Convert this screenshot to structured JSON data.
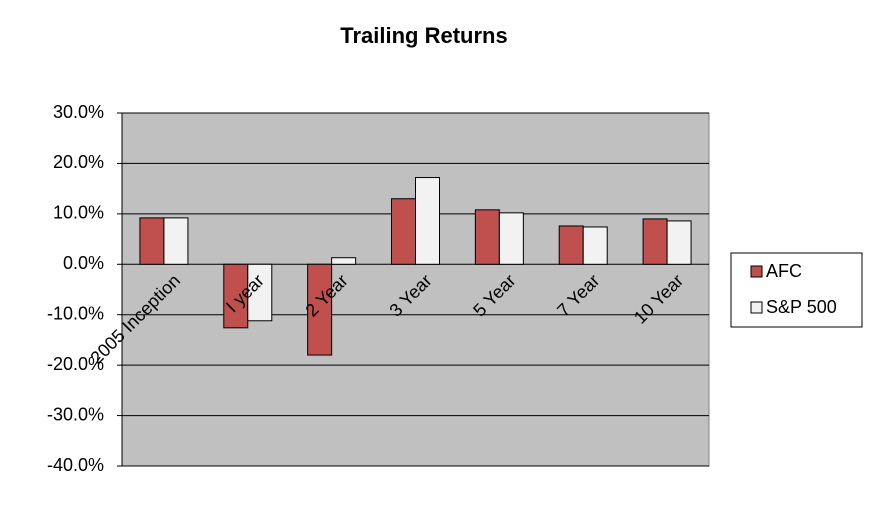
{
  "chart_data": {
    "type": "bar",
    "title": "Trailing Returns",
    "categories": [
      "2005 Inception",
      "I year",
      "2 Year",
      "3 Year",
      "5 Year",
      "7 Year",
      "10 Year"
    ],
    "series": [
      {
        "name": "AFC",
        "color": "#c0504d",
        "values": [
          9.2,
          -12.6,
          -18.0,
          13.0,
          10.8,
          7.6,
          9.0
        ]
      },
      {
        "name": "S&P 500",
        "color": "#f2f2f2",
        "values": [
          9.2,
          -11.2,
          1.3,
          17.2,
          10.2,
          7.4,
          8.6
        ]
      }
    ],
    "ylim": [
      -40,
      30
    ],
    "yticks": [
      {
        "value": -40,
        "label": "-40.0%"
      },
      {
        "value": -30,
        "label": "-30.0%"
      },
      {
        "value": -20,
        "label": "-20.0%"
      },
      {
        "value": -10,
        "label": "-10.0%"
      },
      {
        "value": 0,
        "label": "0.0%"
      },
      {
        "value": 10,
        "label": "10.0%"
      },
      {
        "value": 20,
        "label": "20.0%"
      },
      {
        "value": 30,
        "label": "30.0%"
      }
    ],
    "grid": true,
    "legend": "right"
  }
}
